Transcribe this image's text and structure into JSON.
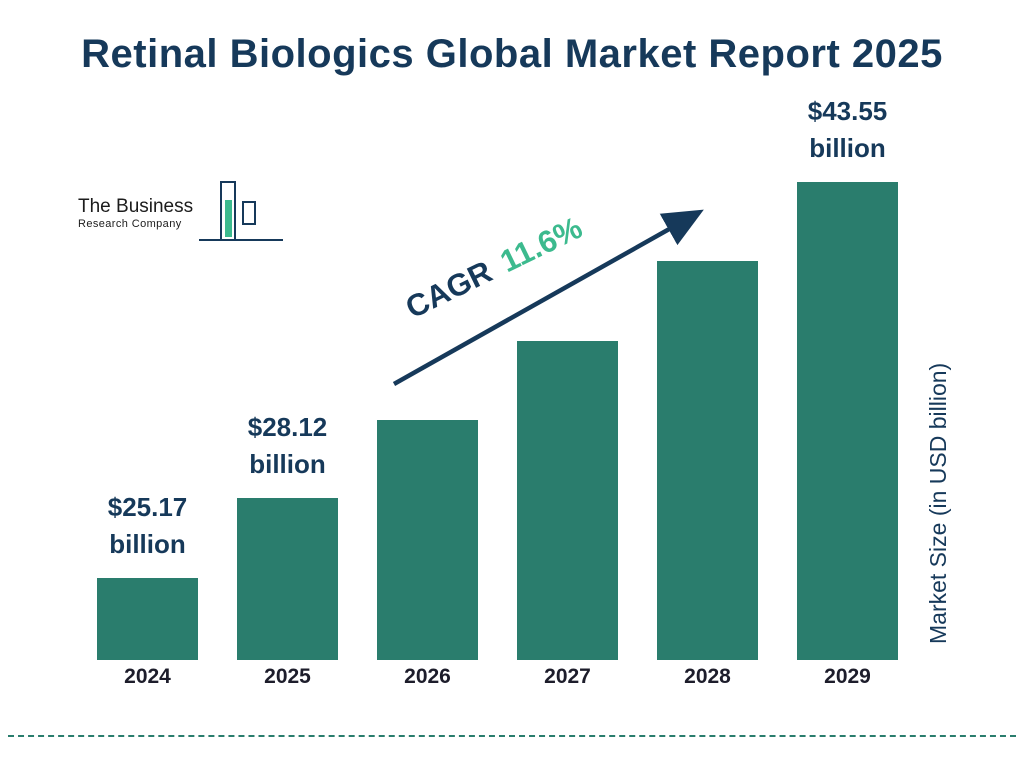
{
  "title": "Retinal Biologics Global Market Report 2025",
  "logo": {
    "line1": "The Business",
    "line2": "Research Company"
  },
  "cagr": {
    "label": "CAGR",
    "value": "11.6%"
  },
  "ylabel": "Market Size (in USD billion)",
  "colors": {
    "bar": "#2a7d6d",
    "navy": "#16395a",
    "green": "#3cba8e"
  },
  "chart_data": {
    "type": "bar",
    "title": "Retinal Biologics Global Market Report 2025",
    "categories": [
      "2024",
      "2025",
      "2026",
      "2027",
      "2028",
      "2029"
    ],
    "values": [
      25.17,
      28.12,
      31.4,
      35.0,
      39.1,
      43.55
    ],
    "bar_labels": [
      {
        "amount": "$25.17",
        "unit": "billion"
      },
      {
        "amount": "$28.12",
        "unit": "billion"
      },
      null,
      null,
      null,
      {
        "amount": "$43.55",
        "unit": "billion"
      }
    ],
    "annotation": "CAGR 11.6%",
    "xlabel": "",
    "ylabel": "Market Size (in USD billion)",
    "legend": false,
    "grid": false
  }
}
